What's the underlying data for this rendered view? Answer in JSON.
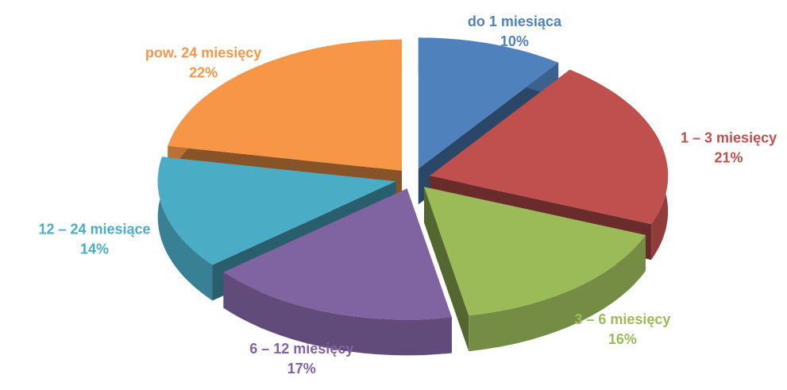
{
  "chart_data": {
    "type": "pie3d",
    "categories": [
      "do 1 miesiąca",
      "1 – 3 miesięcy",
      "3 – 6 miesięcy",
      "6 – 12 miesięcy",
      "12 – 24 miesiące",
      "pow. 24 miesięcy"
    ],
    "values": [
      10,
      21,
      16,
      17,
      14,
      22
    ],
    "value_labels": [
      "10%",
      "21%",
      "16%",
      "17%",
      "14%",
      "22%"
    ],
    "colors": [
      "#4f81bd",
      "#c0504d",
      "#9bbb59",
      "#8064a2",
      "#4bacc6",
      "#f79646"
    ]
  }
}
